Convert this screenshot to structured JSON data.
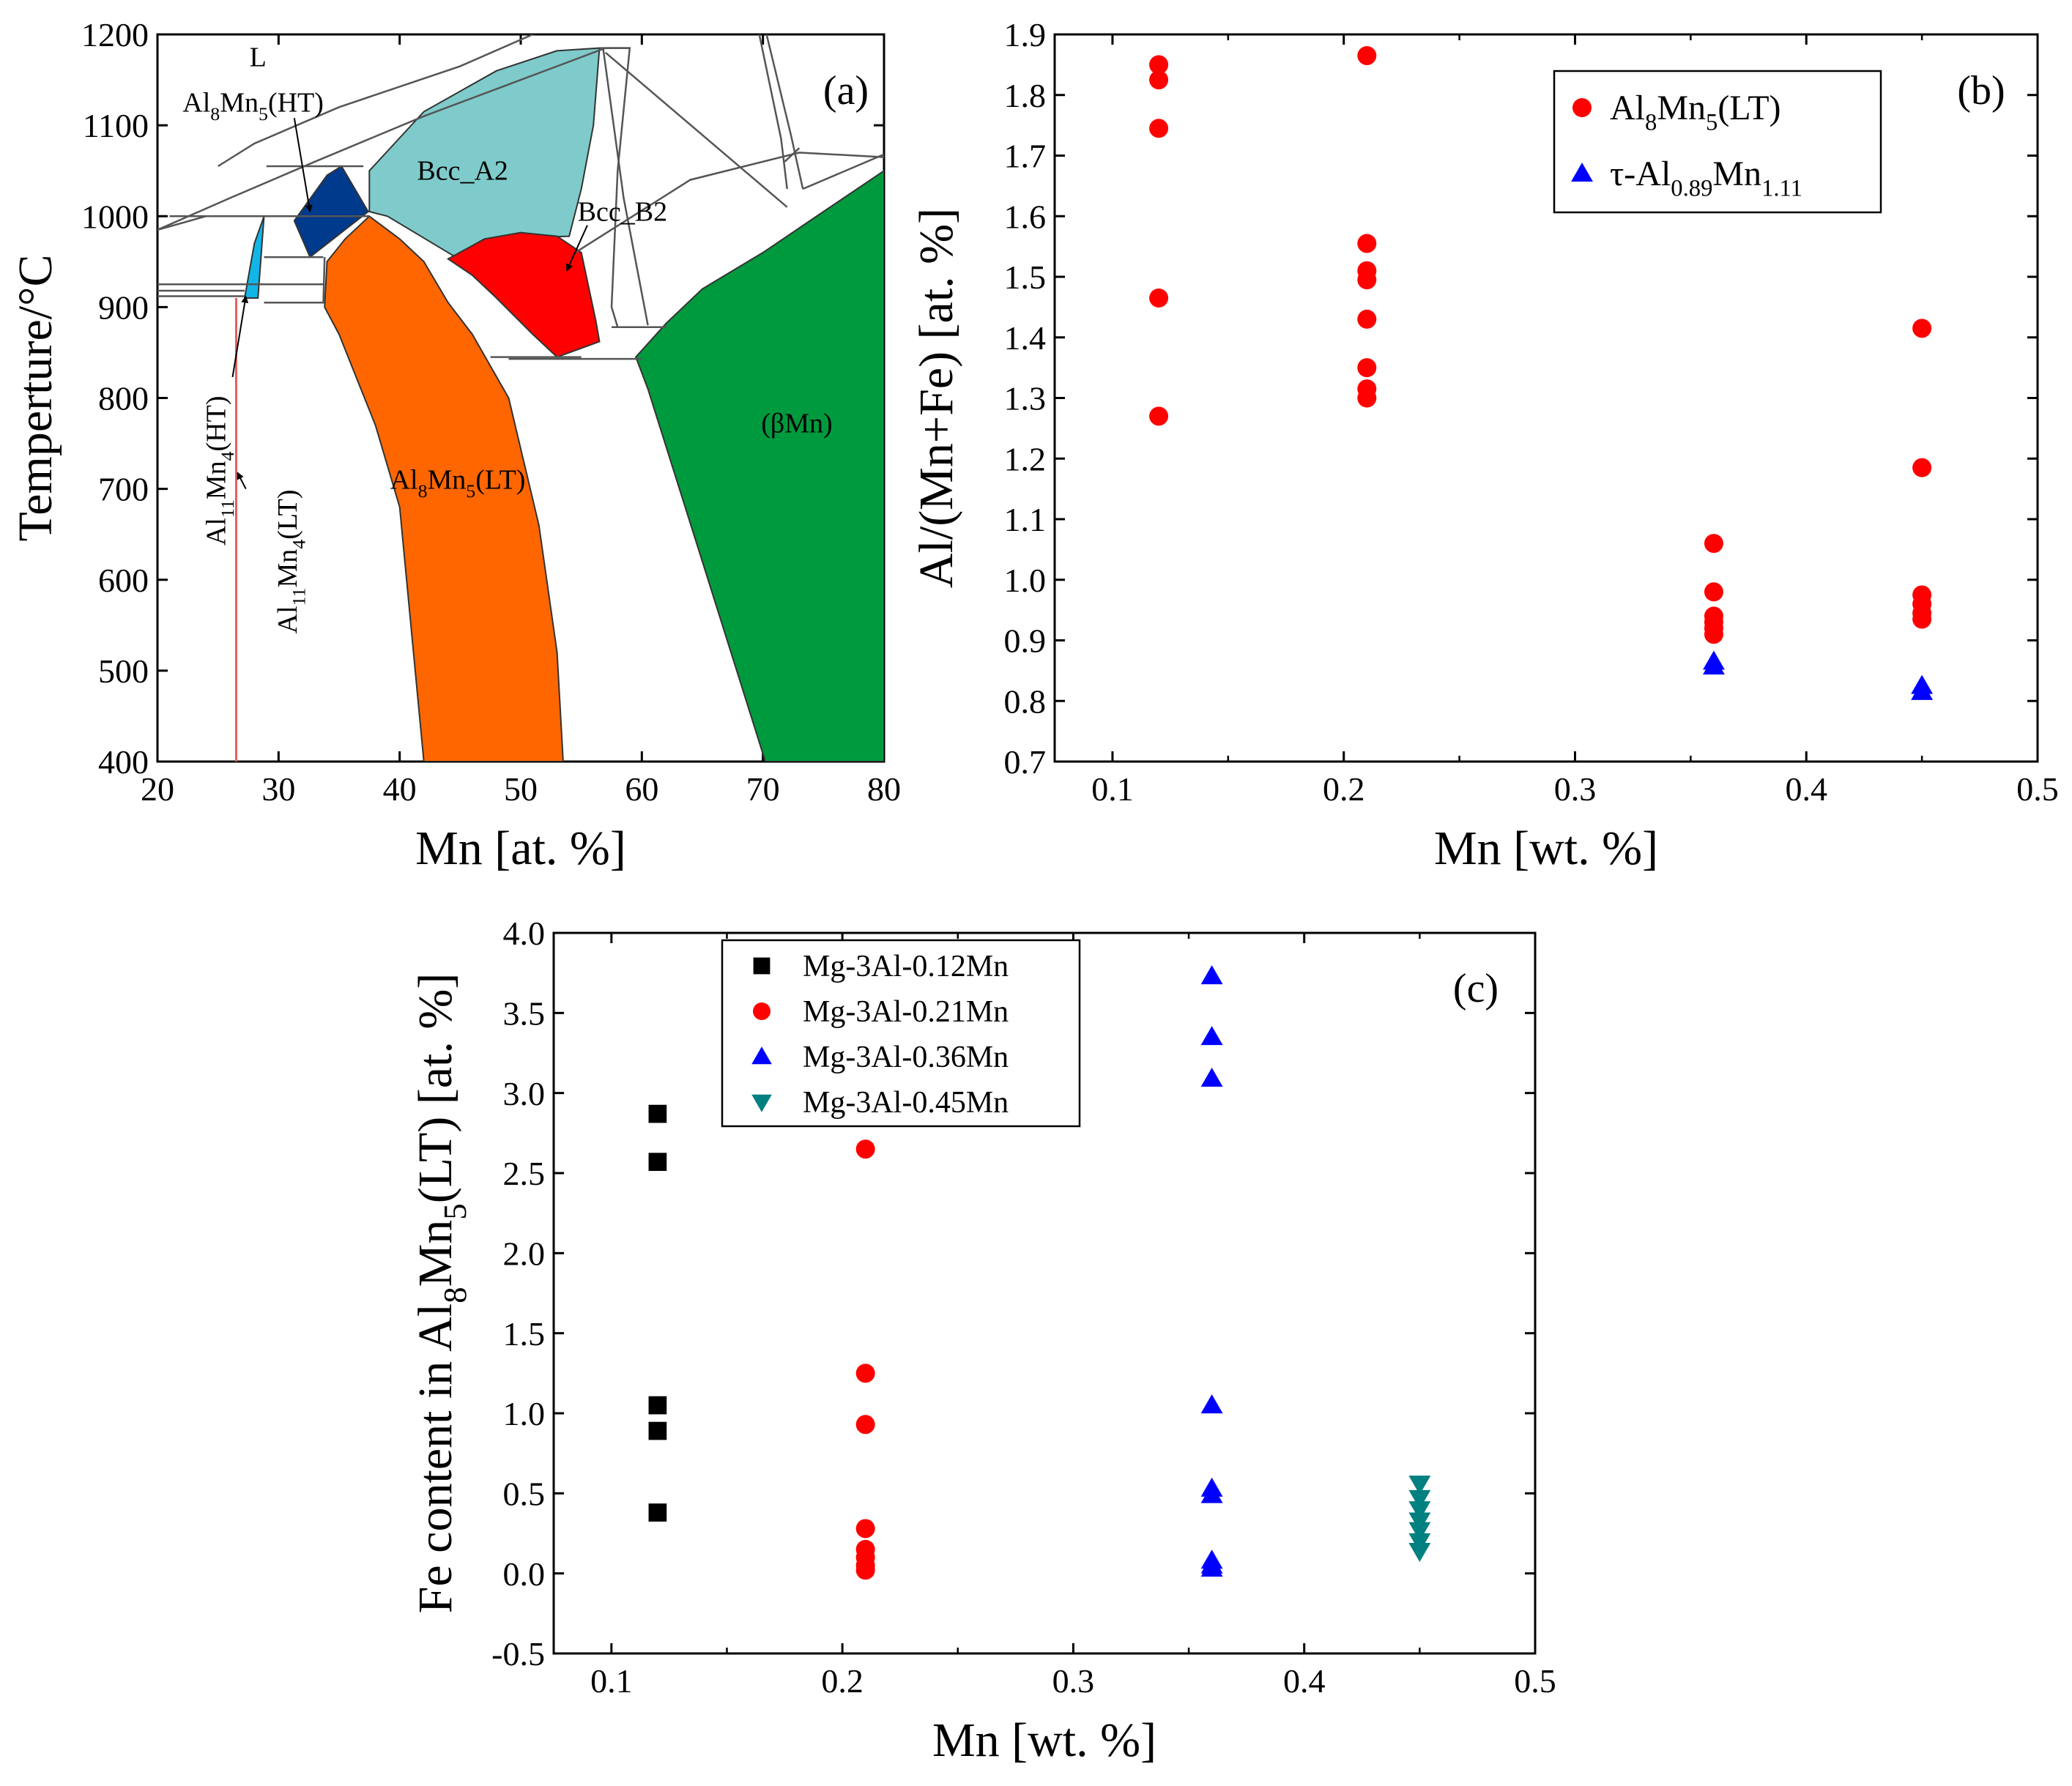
{
  "chart_data": [
    {
      "type": "diagram",
      "panel": "(a)",
      "title": "",
      "xlabel": "Mn [at. %]",
      "ylabel": "Temperture/°C",
      "xlim": [
        20,
        80
      ],
      "ylim": [
        400,
        1200
      ],
      "xticks": [
        20,
        30,
        40,
        50,
        60,
        70,
        80
      ],
      "yticks": [
        400,
        500,
        600,
        700,
        800,
        900,
        1000,
        1100,
        1200
      ],
      "colors": {
        "bcc_a2": "#7fcbcb",
        "bcc_b2": "#ff0000",
        "al8mn5_lt": "#ff6600",
        "beta_mn": "#009a3e",
        "al8mn5_ht": "#003a8c",
        "al11mn4_ht": "#11b6e8",
        "al11mn4_lt_line": "#e06060",
        "phase_line": "#555555"
      },
      "phase_regions": [
        {
          "name": "Bcc_A2",
          "polygon": [
            [
              37.5,
              1050
            ],
            [
              42,
              1115
            ],
            [
              48,
              1160
            ],
            [
              53,
              1182
            ],
            [
              56.5,
              1185
            ],
            [
              56,
              1100
            ],
            [
              55,
              1030
            ],
            [
              54,
              978
            ],
            [
              50,
              976
            ],
            [
              45,
              952
            ],
            [
              39,
              1000
            ],
            [
              37.5,
              1005
            ]
          ]
        },
        {
          "name": "Bcc_B2",
          "polygon": [
            [
              44,
              953
            ],
            [
              47,
              975
            ],
            [
              50,
              982
            ],
            [
              53,
              978
            ],
            [
              55,
              960
            ],
            [
              56.2,
              885
            ],
            [
              56.5,
              862
            ],
            [
              53,
              845
            ],
            [
              51,
              870
            ],
            [
              48,
              910
            ],
            [
              46,
              935
            ],
            [
              44,
              953
            ]
          ]
        },
        {
          "name": "Al8Mn5(LT)",
          "polygon": [
            [
              37.5,
              1000
            ],
            [
              35.5,
              975
            ],
            [
              34,
              950
            ],
            [
              33.8,
              900
            ],
            [
              35,
              870
            ],
            [
              36.5,
              820
            ],
            [
              38,
              770
            ],
            [
              40,
              680
            ],
            [
              42,
              400
            ],
            [
              53.5,
              400
            ],
            [
              53,
              520
            ],
            [
              51.5,
              660
            ],
            [
              49,
              800
            ],
            [
              46,
              870
            ],
            [
              44,
              905
            ],
            [
              42,
              950
            ],
            [
              40,
              975
            ],
            [
              37.5,
              1000
            ]
          ]
        },
        {
          "name": "(βMn)",
          "polygon": [
            [
              59.5,
              845
            ],
            [
              62,
              882
            ],
            [
              65,
              920
            ],
            [
              70,
              960
            ],
            [
              75,
              1005
            ],
            [
              80,
              1050
            ],
            [
              80,
              400
            ],
            [
              70.2,
              400
            ],
            [
              65,
              620
            ],
            [
              60.5,
              810
            ],
            [
              59.5,
              845
            ]
          ]
        },
        {
          "name": "Al8Mn5(HT)",
          "polygon": [
            [
              31.3,
              995
            ],
            [
              34,
              1045
            ],
            [
              35.2,
              1055
            ],
            [
              37.4,
              1005
            ],
            [
              32.6,
              955
            ],
            [
              31.3,
              995
            ]
          ]
        },
        {
          "name": "Al11Mn4(HT)",
          "polygon": [
            [
              27.2,
              910
            ],
            [
              28,
              970
            ],
            [
              28.8,
              1000
            ],
            [
              28.3,
              910
            ],
            [
              27.2,
              910
            ]
          ]
        }
      ],
      "phase_lines": [
        [
          [
            20,
            985
          ],
          [
            26,
            1020
          ],
          [
            33,
            1060
          ],
          [
            42,
            1110
          ],
          [
            50,
            1150
          ],
          [
            57,
            1185
          ]
        ],
        [
          [
            20,
            985
          ],
          [
            24,
            1000
          ],
          [
            31.3,
            1000
          ]
        ],
        [
          [
            25,
            1055
          ],
          [
            28,
            1080
          ],
          [
            35,
            1120
          ],
          [
            45,
            1165
          ],
          [
            51,
            1200
          ]
        ],
        [
          [
            21,
            1000
          ],
          [
            37.5,
            1000
          ]
        ],
        [
          [
            29,
            1055
          ],
          [
            37,
            1055
          ]
        ],
        [
          [
            20,
            925
          ],
          [
            33.7,
            925
          ]
        ],
        [
          [
            20,
            918
          ],
          [
            27.2,
            918
          ]
        ],
        [
          [
            20,
            912
          ],
          [
            27.2,
            912
          ]
        ],
        [
          [
            28.8,
            955
          ],
          [
            33.7,
            955
          ]
        ],
        [
          [
            28.8,
            905
          ],
          [
            33.7,
            905
          ],
          [
            33.8,
            955
          ]
        ],
        [
          [
            57,
            1185
          ],
          [
            59,
            1185
          ]
        ],
        [
          [
            56.5,
            1185
          ],
          [
            59,
            1185
          ],
          [
            58,
            1050
          ],
          [
            57.5,
            900
          ],
          [
            58,
            878
          ]
        ],
        [
          [
            57.5,
            878
          ],
          [
            62,
            878
          ]
        ],
        [
          [
            56.8,
            1185
          ],
          [
            58.5,
            1020
          ],
          [
            60.5,
            880
          ]
        ],
        [
          [
            54.5,
            960
          ],
          [
            64,
            1040
          ],
          [
            73,
            1070
          ],
          [
            80,
            1065
          ]
        ],
        [
          [
            57,
            1180
          ],
          [
            72,
            1010
          ]
        ],
        [
          [
            49,
            843
          ],
          [
            60,
            843
          ]
        ],
        [
          [
            47.5,
            845
          ],
          [
            55,
            845
          ]
        ],
        [
          [
            70.3,
            1200
          ],
          [
            72.3,
            1090
          ],
          [
            73.3,
            1030
          ]
        ],
        [
          [
            69.7,
            1200
          ],
          [
            71.5,
            1085
          ],
          [
            72,
            1030
          ]
        ],
        [
          [
            71.8,
            1060
          ],
          [
            73,
            1075
          ]
        ],
        [
          [
            73.3,
            1030
          ],
          [
            80,
            1068
          ]
        ]
      ],
      "red_line_x": 26.5,
      "labels": [
        {
          "text": "L",
          "x": 28.3,
          "y": 1165
        },
        {
          "text": "Al",
          "sub": "8",
          "mid": "Mn",
          "sub2": "5",
          "tail": "(HT)",
          "x": 27.9,
          "y": 1115
        },
        {
          "text": "Bcc_A2",
          "x": 45.2,
          "y": 1040
        },
        {
          "text": "Bcc_B2",
          "x": 58.4,
          "y": 995
        },
        {
          "text": "(βMn)",
          "x": 72.8,
          "y": 762
        },
        {
          "text": "Al",
          "sub": "8",
          "mid": "Mn",
          "sub2": "5",
          "tail": "(LT)",
          "x": 44.8,
          "y": 700
        }
      ],
      "vertical_labels": [
        {
          "text": "Al",
          "sub": "11",
          "mid": "Mn",
          "sub2": "4",
          "tail": "(HT)",
          "x": 25.6,
          "y": 720
        },
        {
          "text": "Al",
          "sub": "11",
          "mid": "Mn",
          "sub2": "4",
          "tail": "(LT)",
          "x": 31.5,
          "y": 620
        }
      ],
      "annotations": [
        {
          "from": [
            26.2,
            823
          ],
          "to": [
            27.3,
            912
          ]
        },
        {
          "from": [
            27.3,
            700
          ],
          "to": [
            26.6,
            718
          ]
        },
        {
          "from": [
            31.3,
            1108
          ],
          "to": [
            32.6,
            1005
          ]
        },
        {
          "from": [
            55.5,
            990
          ],
          "to": [
            53.8,
            940
          ]
        }
      ],
      "ref_lines": [
        [
          [
            20,
            918
          ],
          [
            27.2,
            918
          ]
        ]
      ]
    },
    {
      "type": "scatter",
      "panel": "(b)",
      "title": "",
      "xlabel": "Mn [wt. %]",
      "ylabel": "Al/(Mn+Fe) [at. %]",
      "xlim": [
        0.075,
        0.5
      ],
      "ylim": [
        0.7,
        1.9
      ],
      "xticks": [
        0.1,
        0.2,
        0.3,
        0.4,
        0.5
      ],
      "yticks": [
        0.7,
        0.8,
        0.9,
        1.0,
        1.1,
        1.2,
        1.3,
        1.4,
        1.5,
        1.6,
        1.7,
        1.8,
        1.9
      ],
      "legend_position": "top-right",
      "series": [
        {
          "name": "Al8Mn5(LT)",
          "legend": {
            "a": "Al",
            "s1": "8",
            "b": "Mn",
            "s2": "5",
            "c": "(LT)"
          },
          "marker": "circle",
          "color": "#ff0000",
          "points": [
            [
              0.12,
              1.85
            ],
            [
              0.12,
              1.825
            ],
            [
              0.12,
              1.745
            ],
            [
              0.12,
              1.465
            ],
            [
              0.12,
              1.27
            ],
            [
              0.21,
              1.865
            ],
            [
              0.21,
              1.555
            ],
            [
              0.21,
              1.51
            ],
            [
              0.21,
              1.495
            ],
            [
              0.21,
              1.43
            ],
            [
              0.21,
              1.35
            ],
            [
              0.21,
              1.315
            ],
            [
              0.21,
              1.3
            ],
            [
              0.36,
              1.06
            ],
            [
              0.36,
              0.98
            ],
            [
              0.36,
              0.94
            ],
            [
              0.36,
              0.93
            ],
            [
              0.36,
              0.92
            ],
            [
              0.36,
              0.91
            ],
            [
              0.45,
              1.415
            ],
            [
              0.45,
              1.185
            ],
            [
              0.45,
              0.975
            ],
            [
              0.45,
              0.96
            ],
            [
              0.45,
              0.945
            ],
            [
              0.45,
              0.935
            ]
          ]
        },
        {
          "name": "τ-Al0.89Mn1.11",
          "legend": {
            "a": "τ-Al",
            "s1": "0.89",
            "b": "Mn",
            "s2": "1.11",
            "c": ""
          },
          "marker": "triangle-up",
          "color": "#0000ff",
          "points": [
            [
              0.36,
              0.865
            ],
            [
              0.36,
              0.857
            ],
            [
              0.45,
              0.825
            ],
            [
              0.45,
              0.815
            ]
          ]
        }
      ]
    },
    {
      "type": "scatter",
      "panel": "(c)",
      "title": "",
      "xlabel": "Mn [wt. %]",
      "ylabel": {
        "a": "Fe content in Al",
        "s1": "8",
        "b": "Mn",
        "s2": "5",
        "c": "(LT) [at. %]"
      },
      "xlim": [
        0.075,
        0.5
      ],
      "ylim": [
        -0.5,
        4.0
      ],
      "xticks": [
        0.1,
        0.2,
        0.3,
        0.4,
        0.5
      ],
      "yticks": [
        -0.5,
        0.0,
        0.5,
        1.0,
        1.5,
        2.0,
        2.5,
        3.0,
        3.5,
        4.0
      ],
      "legend_position": "top-left",
      "series": [
        {
          "name": "Mg-3Al-0.12Mn",
          "marker": "square",
          "color": "#000000",
          "points": [
            [
              0.12,
              2.87
            ],
            [
              0.12,
              2.57
            ],
            [
              0.12,
              1.05
            ],
            [
              0.12,
              0.89
            ],
            [
              0.12,
              0.38
            ]
          ]
        },
        {
          "name": "Mg-3Al-0.21Mn",
          "marker": "circle",
          "color": "#ff0000",
          "points": [
            [
              0.21,
              2.65
            ],
            [
              0.21,
              1.25
            ],
            [
              0.21,
              0.93
            ],
            [
              0.21,
              0.28
            ],
            [
              0.21,
              0.15
            ],
            [
              0.21,
              0.1
            ],
            [
              0.21,
              0.05
            ],
            [
              0.21,
              0.02
            ]
          ]
        },
        {
          "name": "Mg-3Al-0.36Mn",
          "marker": "triangle-up",
          "color": "#0000ff",
          "points": [
            [
              0.36,
              3.73
            ],
            [
              0.36,
              3.35
            ],
            [
              0.36,
              3.09
            ],
            [
              0.36,
              1.05
            ],
            [
              0.36,
              0.53
            ],
            [
              0.36,
              0.49
            ],
            [
              0.36,
              0.08
            ],
            [
              0.36,
              0.05
            ],
            [
              0.36,
              0.03
            ]
          ]
        },
        {
          "name": "Mg-3Al-0.45Mn",
          "marker": "triangle-down",
          "color": "#008080",
          "points": [
            [
              0.45,
              0.56
            ],
            [
              0.45,
              0.47
            ],
            [
              0.45,
              0.4
            ],
            [
              0.45,
              0.33
            ],
            [
              0.45,
              0.27
            ],
            [
              0.45,
              0.2
            ],
            [
              0.45,
              0.14
            ]
          ]
        }
      ]
    }
  ]
}
